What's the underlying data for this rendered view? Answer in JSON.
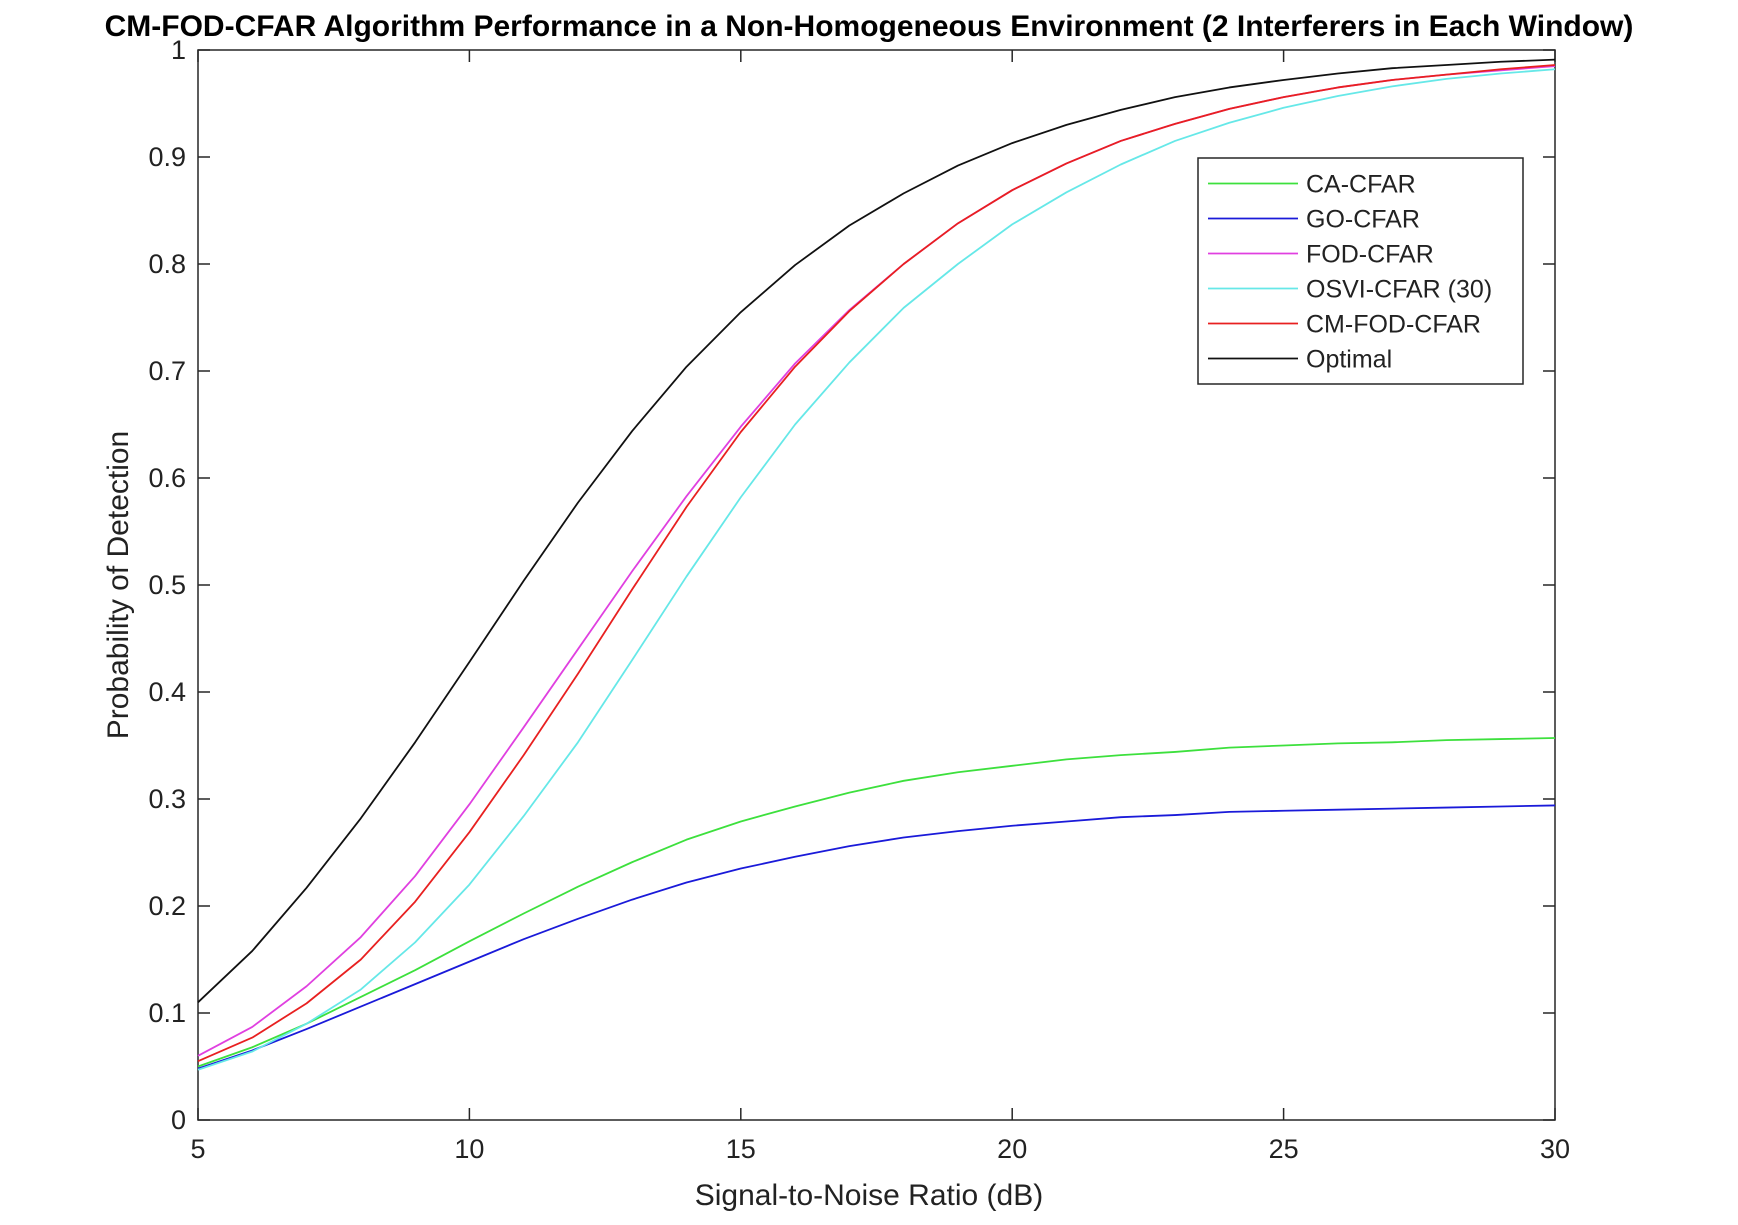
{
  "chart_data": {
    "type": "line",
    "title": "CM-FOD-CFAR Algorithm Performance in a Non-Homogeneous Environment (2 Interferers in Each Window)",
    "xlabel": "Signal-to-Noise Ratio (dB)",
    "ylabel": "Probability of Detection",
    "xlim": [
      5,
      30
    ],
    "ylim": [
      0,
      1
    ],
    "xticks": [
      5,
      10,
      15,
      20,
      25,
      30
    ],
    "yticks": [
      0,
      0.1,
      0.2,
      0.3,
      0.4,
      0.5,
      0.6,
      0.7,
      0.8,
      0.9,
      1
    ],
    "grid": false,
    "legend_position": "top-right",
    "x": [
      5,
      6,
      7,
      8,
      9,
      10,
      11,
      12,
      13,
      14,
      15,
      16,
      17,
      18,
      19,
      20,
      21,
      22,
      23,
      24,
      25,
      26,
      27,
      28,
      29,
      30
    ],
    "series": [
      {
        "name": "CA-CFAR",
        "color": "#3de03d",
        "values": [
          0.05,
          0.068,
          0.09,
          0.115,
          0.14,
          0.167,
          0.193,
          0.218,
          0.241,
          0.262,
          0.279,
          0.293,
          0.306,
          0.317,
          0.325,
          0.331,
          0.337,
          0.341,
          0.344,
          0.348,
          0.35,
          0.352,
          0.353,
          0.355,
          0.356,
          0.357
        ]
      },
      {
        "name": "GO-CFAR",
        "color": "#1a1ad9",
        "values": [
          0.048,
          0.065,
          0.085,
          0.106,
          0.127,
          0.148,
          0.169,
          0.188,
          0.206,
          0.222,
          0.235,
          0.246,
          0.256,
          0.264,
          0.27,
          0.275,
          0.279,
          0.283,
          0.285,
          0.288,
          0.289,
          0.29,
          0.291,
          0.292,
          0.293,
          0.294
        ]
      },
      {
        "name": "FOD-CFAR",
        "color": "#e040e0",
        "values": [
          0.06,
          0.087,
          0.125,
          0.171,
          0.228,
          0.295,
          0.367,
          0.44,
          0.513,
          0.583,
          0.648,
          0.707,
          0.757,
          0.8,
          0.838,
          0.869,
          0.894,
          0.915,
          0.931,
          0.945,
          0.956,
          0.965,
          0.972,
          0.977,
          0.981,
          0.985
        ]
      },
      {
        "name": "OSVI-CFAR (30)",
        "color": "#66e8e8",
        "values": [
          0.047,
          0.064,
          0.09,
          0.122,
          0.166,
          0.22,
          0.284,
          0.353,
          0.43,
          0.508,
          0.582,
          0.65,
          0.708,
          0.759,
          0.8,
          0.837,
          0.867,
          0.893,
          0.915,
          0.932,
          0.946,
          0.957,
          0.966,
          0.973,
          0.978,
          0.982
        ]
      },
      {
        "name": "CM-FOD-CFAR",
        "color": "#e82020",
        "values": [
          0.055,
          0.077,
          0.109,
          0.15,
          0.204,
          0.269,
          0.341,
          0.417,
          0.496,
          0.573,
          0.643,
          0.704,
          0.756,
          0.8,
          0.838,
          0.869,
          0.894,
          0.915,
          0.931,
          0.945,
          0.956,
          0.965,
          0.972,
          0.977,
          0.982,
          0.986
        ]
      },
      {
        "name": "Optimal",
        "color": "#111111",
        "values": [
          0.11,
          0.158,
          0.217,
          0.282,
          0.353,
          0.428,
          0.504,
          0.577,
          0.644,
          0.704,
          0.755,
          0.799,
          0.836,
          0.866,
          0.892,
          0.913,
          0.93,
          0.944,
          0.956,
          0.965,
          0.972,
          0.978,
          0.983,
          0.986,
          0.989,
          0.991
        ]
      }
    ]
  }
}
